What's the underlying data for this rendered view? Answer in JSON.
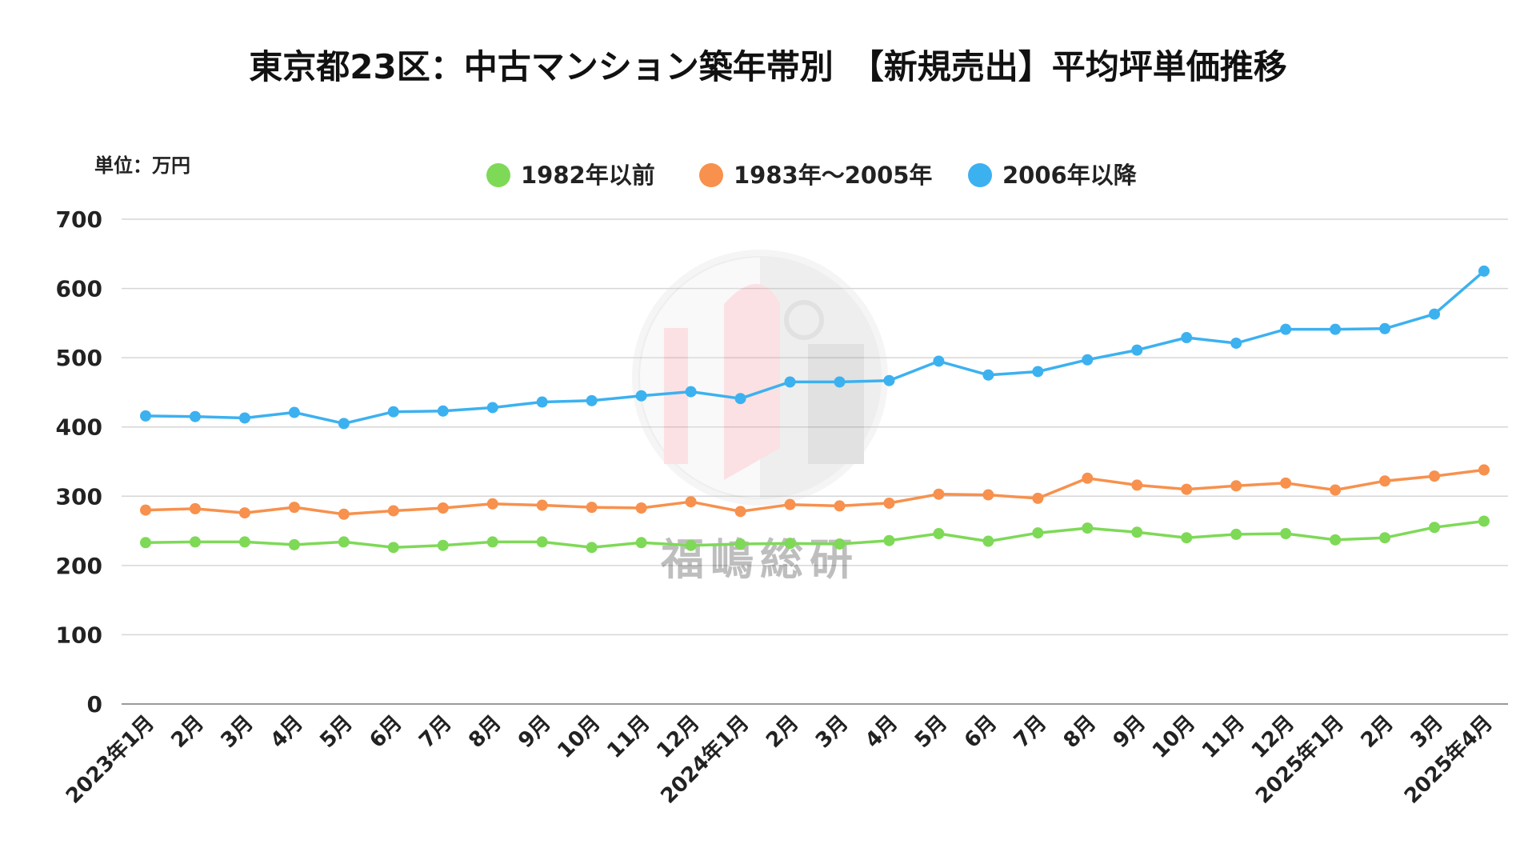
{
  "chart_data": {
    "type": "line",
    "title": "東京都23区：中古マンション築年帯別　【新規売出】平均坪単価推移",
    "unit_label": "単位：万円",
    "xlabel": "",
    "ylabel": "",
    "ylim": [
      0,
      700
    ],
    "yticks": [
      0,
      100,
      200,
      300,
      400,
      500,
      600,
      700
    ],
    "grid": true,
    "legend_position": "top-center",
    "categories": [
      "2023年1月",
      "2月",
      "3月",
      "4月",
      "5月",
      "6月",
      "7月",
      "8月",
      "9月",
      "10月",
      "11月",
      "12月",
      "2024年1月",
      "2月",
      "3月",
      "4月",
      "5月",
      "6月",
      "7月",
      "8月",
      "9月",
      "10月",
      "11月",
      "12月",
      "2025年1月",
      "2月",
      "3月",
      "2025年4月"
    ],
    "series": [
      {
        "name": "1982年以前",
        "color": "#7ed957",
        "values": [
          233,
          234,
          234,
          230,
          234,
          226,
          229,
          234,
          234,
          226,
          233,
          229,
          231,
          232,
          231,
          236,
          246,
          235,
          247,
          254,
          248,
          240,
          245,
          246,
          237,
          240,
          255,
          264
        ]
      },
      {
        "name": "1983年～2005年",
        "color": "#f7914d",
        "values": [
          280,
          282,
          276,
          284,
          274,
          279,
          283,
          289,
          287,
          284,
          283,
          292,
          278,
          288,
          286,
          290,
          303,
          302,
          297,
          326,
          316,
          310,
          315,
          319,
          309,
          322,
          329,
          338
        ]
      },
      {
        "name": "2006年以降",
        "color": "#3cb1f0",
        "values": [
          416,
          415,
          413,
          421,
          405,
          422,
          423,
          428,
          436,
          438,
          445,
          451,
          441,
          465,
          465,
          467,
          495,
          475,
          480,
          497,
          511,
          529,
          521,
          541,
          541,
          542,
          563,
          625
        ]
      }
    ]
  },
  "watermark": {
    "text": "福嶋総研"
  }
}
